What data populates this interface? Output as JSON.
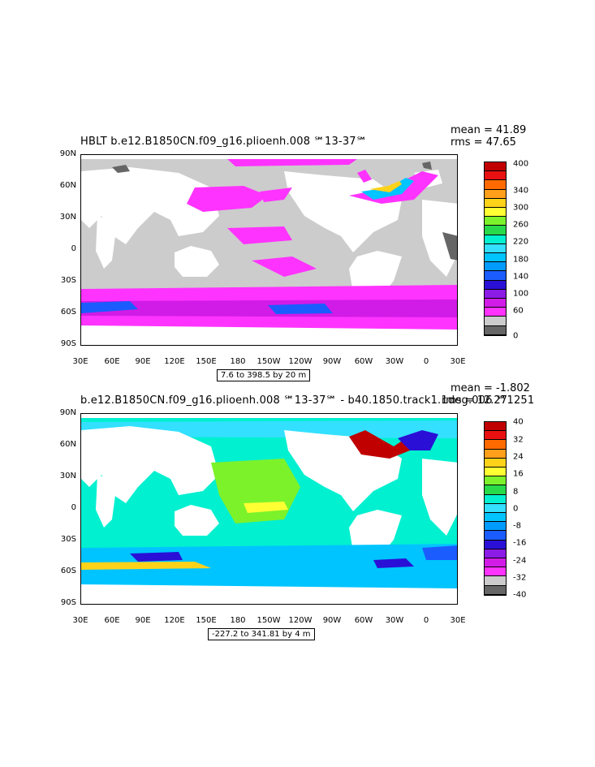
{
  "panels": [
    {
      "title": "HBLT b.e12.B1850CN.f09_g16.plioenh.008 ℠13-37℠",
      "mean": "mean = 41.89",
      "rms": "rms = 47.65",
      "range": "7.6 to 398.5 by 20 m",
      "colorbar": {
        "labels": [
          "400",
          "340",
          "300",
          "260",
          "220",
          "180",
          "140",
          "100",
          "60",
          "0"
        ],
        "colors": [
          "#c00000",
          "#e81010",
          "#ff6a00",
          "#ff9f1a",
          "#ffd21a",
          "#ffff33",
          "#7cf22b",
          "#28d94a",
          "#00f0d0",
          "#33e0ff",
          "#00c4ff",
          "#009bff",
          "#1b5cff",
          "#2a0fd6",
          "#8c1be6",
          "#d11be6",
          "#ff33ff",
          "#cccccc",
          "#666666"
        ]
      }
    },
    {
      "title": "b.e12.B1850CN.f09_g16.plioenh.008 ℠13-37℠ - b40.1850.track1.1deg.006 ℠1251",
      "mean": "mean = -1.802",
      "rms": "rms = 12.27",
      "range": "-227.2 to 341.81 by 4 m",
      "colorbar": {
        "labels": [
          "40",
          "32",
          "24",
          "16",
          "8",
          "0",
          "-8",
          "-16",
          "-24",
          "-32",
          "-40"
        ],
        "colors": [
          "#c00000",
          "#e81010",
          "#ff6a00",
          "#ff9f1a",
          "#ffd21a",
          "#ffff33",
          "#7cf22b",
          "#28d94a",
          "#00f0d0",
          "#33e0ff",
          "#00c4ff",
          "#009bff",
          "#1b5cff",
          "#2a0fd6",
          "#8c1be6",
          "#d11be6",
          "#ff33ff",
          "#cccccc",
          "#666666"
        ]
      }
    }
  ],
  "axes": {
    "lat_labels": [
      "90N",
      "60N",
      "30N",
      "0",
      "30S",
      "60S",
      "90S"
    ],
    "lon_labels": [
      "30E",
      "60E",
      "90E",
      "120E",
      "150E",
      "180",
      "150W",
      "120W",
      "90W",
      "60W",
      "30W",
      "0",
      "30E"
    ]
  }
}
